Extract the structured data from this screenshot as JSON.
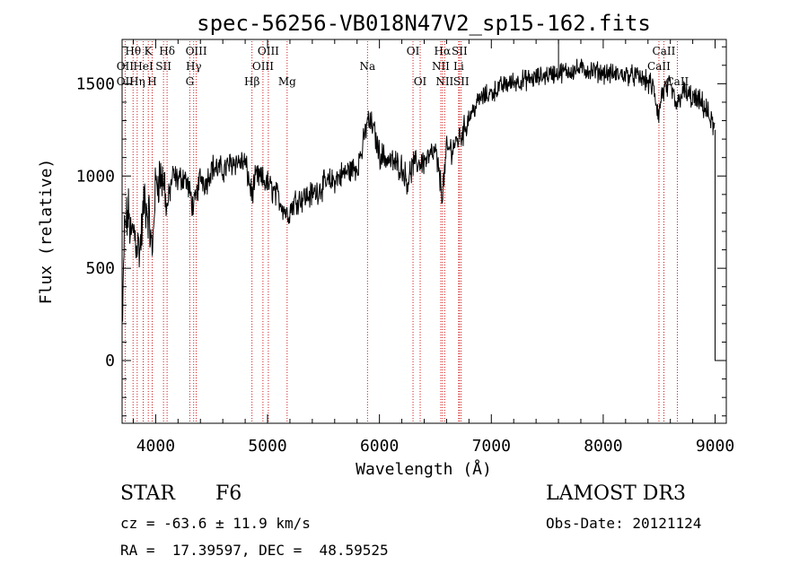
{
  "chart_data": {
    "type": "line",
    "title": "spec-56256-VB018N47V2_sp15-162.fits",
    "xlabel": "Wavelength (Å)",
    "ylabel": "Flux (relative)",
    "xlim": [
      3700,
      9100
    ],
    "ylim": [
      -340,
      1740
    ],
    "xticks": [
      4000,
      5000,
      6000,
      7000,
      8000,
      9000
    ],
    "yticks": [
      0,
      500,
      1000,
      1500
    ],
    "spectrum_anchors": [
      [
        3700,
        30
      ],
      [
        3720,
        700
      ],
      [
        3740,
        760
      ],
      [
        3760,
        800
      ],
      [
        3780,
        650
      ],
      [
        3800,
        720
      ],
      [
        3830,
        640
      ],
      [
        3860,
        600
      ],
      [
        3880,
        740
      ],
      [
        3900,
        880
      ],
      [
        3920,
        820
      ],
      [
        3940,
        780
      ],
      [
        3970,
        560
      ],
      [
        3990,
        880
      ],
      [
        4010,
        980
      ],
      [
        4040,
        1000
      ],
      [
        4080,
        960
      ],
      [
        4100,
        820
      ],
      [
        4150,
        1000
      ],
      [
        4200,
        980
      ],
      [
        4260,
        1000
      ],
      [
        4300,
        920
      ],
      [
        4340,
        820
      ],
      [
        4400,
        1000
      ],
      [
        4450,
        960
      ],
      [
        4500,
        1050
      ],
      [
        4600,
        1030
      ],
      [
        4700,
        1080
      ],
      [
        4800,
        1070
      ],
      [
        4860,
        900
      ],
      [
        4900,
        1000
      ],
      [
        5000,
        960
      ],
      [
        5100,
        880
      ],
      [
        5175,
        790
      ],
      [
        5250,
        870
      ],
      [
        5400,
        900
      ],
      [
        5500,
        950
      ],
      [
        5600,
        980
      ],
      [
        5700,
        1020
      ],
      [
        5800,
        1050
      ],
      [
        5850,
        1150
      ],
      [
        5890,
        1300
      ],
      [
        5940,
        1270
      ],
      [
        6000,
        1120
      ],
      [
        6100,
        1080
      ],
      [
        6200,
        1050
      ],
      [
        6250,
        970
      ],
      [
        6300,
        1060
      ],
      [
        6400,
        1080
      ],
      [
        6500,
        1130
      ],
      [
        6563,
        900
      ],
      [
        6600,
        1140
      ],
      [
        6650,
        1150
      ],
      [
        6700,
        1200
      ],
      [
        6750,
        1240
      ],
      [
        6800,
        1320
      ],
      [
        6900,
        1420
      ],
      [
        7000,
        1450
      ],
      [
        7100,
        1490
      ],
      [
        7200,
        1510
      ],
      [
        7300,
        1520
      ],
      [
        7400,
        1530
      ],
      [
        7500,
        1550
      ],
      [
        7600,
        1560
      ],
      [
        7700,
        1570
      ],
      [
        7800,
        1580
      ],
      [
        7900,
        1570
      ],
      [
        8000,
        1560
      ],
      [
        8100,
        1550
      ],
      [
        8200,
        1550
      ],
      [
        8300,
        1540
      ],
      [
        8400,
        1510
      ],
      [
        8450,
        1470
      ],
      [
        8498,
        1320
      ],
      [
        8520,
        1440
      ],
      [
        8542,
        1460
      ],
      [
        8600,
        1480
      ],
      [
        8662,
        1370
      ],
      [
        8700,
        1460
      ],
      [
        8800,
        1420
      ],
      [
        8900,
        1380
      ],
      [
        8960,
        1300
      ],
      [
        9000,
        1250
      ]
    ],
    "spectral_lines": [
      {
        "label": "Hθ",
        "wavelength": 3798,
        "row": 1
      },
      {
        "label": "OII",
        "wavelength": 3727,
        "row": 2
      },
      {
        "label": "OII",
        "wavelength": 3727,
        "row": 3
      },
      {
        "label": "Hη",
        "wavelength": 3835,
        "row": 3
      },
      {
        "label": "K",
        "wavelength": 3934,
        "row": 1
      },
      {
        "label": "HeI",
        "wavelength": 3889,
        "row": 2
      },
      {
        "label": "H",
        "wavelength": 3969,
        "row": 3
      },
      {
        "label": "Hδ",
        "wavelength": 4102,
        "row": 1
      },
      {
        "label": "SII",
        "wavelength": 4070,
        "row": 2
      },
      {
        "label": "OIII",
        "wavelength": 4363,
        "row": 1
      },
      {
        "label": "Hγ",
        "wavelength": 4340,
        "row": 2
      },
      {
        "label": "G",
        "wavelength": 4305,
        "row": 3
      },
      {
        "label": "OIII",
        "wavelength": 5007,
        "row": 1
      },
      {
        "label": "OIII",
        "wavelength": 4959,
        "row": 2
      },
      {
        "label": "Hβ",
        "wavelength": 4861,
        "row": 3
      },
      {
        "label": "Mg",
        "wavelength": 5175,
        "row": 3
      },
      {
        "label": "Na",
        "wavelength": 5893,
        "row": 2
      },
      {
        "label": "OI",
        "wavelength": 6300,
        "row": 1
      },
      {
        "label": "OI",
        "wavelength": 6364,
        "row": 3
      },
      {
        "label": "Hα",
        "wavelength": 6563,
        "row": 1
      },
      {
        "label": "SII",
        "wavelength": 6716,
        "row": 1
      },
      {
        "label": "NII",
        "wavelength": 6548,
        "row": 2
      },
      {
        "label": "Li",
        "wavelength": 6708,
        "row": 2
      },
      {
        "label": "NII",
        "wavelength": 6583,
        "row": 3
      },
      {
        "label": "SII",
        "wavelength": 6731,
        "row": 3
      },
      {
        "label": "CaII",
        "wavelength": 8542,
        "row": 1
      },
      {
        "label": "CaII",
        "wavelength": 8498,
        "row": 2
      },
      {
        "label": "CaII",
        "wavelength": 8662,
        "row": 3
      }
    ],
    "line_color": "#000000",
    "marker_line_color": "#cc0000"
  },
  "info": {
    "class": "STAR",
    "subclass": "F6",
    "cz": "cz = -63.6 ± 11.9 km/s",
    "coords": "RA =  17.39597, DEC =  48.59525",
    "survey": "LAMOST DR3",
    "obs_date": "Obs-Date: 20121124"
  }
}
